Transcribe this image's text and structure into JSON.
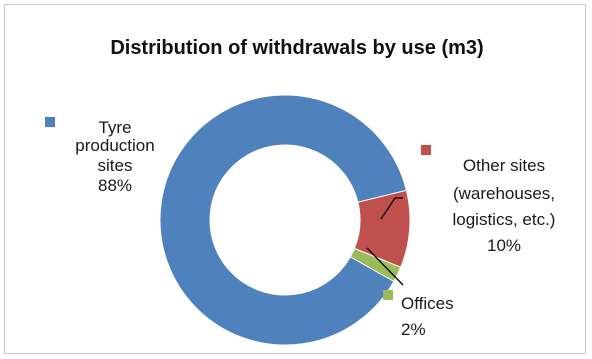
{
  "chart_data": {
    "type": "pie",
    "title": "Distribution of withdrawals by use (m3)",
    "slices": [
      {
        "name": "Tyre production sites",
        "label_lines": [
          "Tyre",
          "production",
          "sites"
        ],
        "value": 88,
        "pct_label": "88%",
        "color": "#4f81bd"
      },
      {
        "name": "Other sites (warehouses, logistics, etc.)",
        "label_lines": [
          "Other sites",
          "(warehouses,",
          "logistics, etc.)"
        ],
        "value": 10,
        "pct_label": "10%",
        "color": "#c0504d"
      },
      {
        "name": "Offices",
        "label_lines": [
          "Offices"
        ],
        "value": 2,
        "pct_label": "2%",
        "color": "#9bbb59"
      }
    ],
    "legend": "inline"
  }
}
